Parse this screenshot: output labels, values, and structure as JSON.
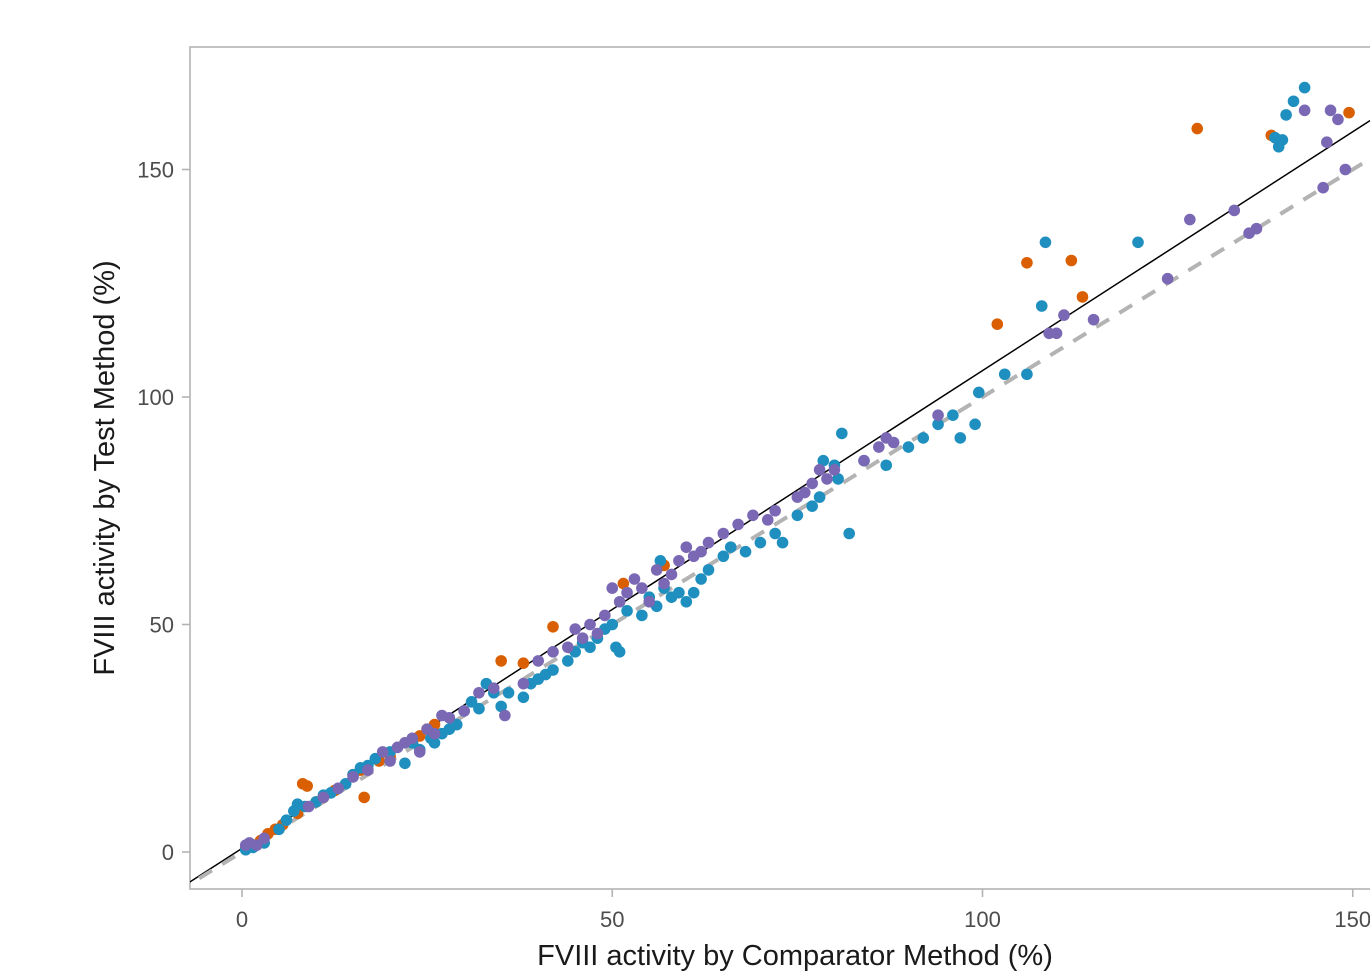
{
  "chart_data": {
    "type": "scatter",
    "title": "",
    "xlabel": "FVIII activity by Comparator Method (%)",
    "ylabel": "FVIII activity by Test Method (%)",
    "xlim": [
      -7,
      152
    ],
    "ylim": [
      -7.5,
      177
    ],
    "x_ticks": [
      0,
      50,
      100,
      150
    ],
    "y_ticks": [
      0,
      50,
      100,
      150
    ],
    "grid": false,
    "legend": "none",
    "reference_lines": [
      {
        "kind": "regression",
        "style": "solid",
        "color": "#000000",
        "intercept": 0.8,
        "slope": 1.05
      },
      {
        "kind": "identity",
        "style": "dashed",
        "color": "#b3b3b3",
        "intercept": 0,
        "slope": 1.0
      }
    ],
    "series": [
      {
        "color": "#d95f02",
        "points": [
          [
            0.5,
            0.8
          ],
          [
            1.5,
            1.5
          ],
          [
            2.5,
            2.5
          ],
          [
            3.5,
            4
          ],
          [
            4.5,
            5
          ],
          [
            5.5,
            6
          ],
          [
            7.5,
            8.5
          ],
          [
            8.2,
            15
          ],
          [
            8.8,
            14.5
          ],
          [
            10,
            11
          ],
          [
            11,
            12
          ],
          [
            12.5,
            13.5
          ],
          [
            15,
            17
          ],
          [
            16,
            18
          ],
          [
            16.5,
            12
          ],
          [
            18.5,
            20
          ],
          [
            20,
            21
          ],
          [
            24,
            25.5
          ],
          [
            25,
            27
          ],
          [
            26,
            28
          ],
          [
            35,
            42
          ],
          [
            38,
            41.5
          ],
          [
            42,
            49.5
          ],
          [
            51.5,
            59
          ],
          [
            57,
            63
          ],
          [
            102,
            116
          ],
          [
            106,
            129.5
          ],
          [
            112,
            130
          ],
          [
            113.5,
            122
          ],
          [
            129,
            159
          ],
          [
            139,
            157.5
          ],
          [
            149.5,
            162.5
          ]
        ]
      },
      {
        "color": "#1f8fbf",
        "points": [
          [
            0.5,
            0.5
          ],
          [
            1.5,
            1
          ],
          [
            3,
            2
          ],
          [
            5,
            5
          ],
          [
            6,
            7
          ],
          [
            7,
            9
          ],
          [
            7.5,
            10.5
          ],
          [
            8.5,
            10
          ],
          [
            10,
            11
          ],
          [
            11,
            12.5
          ],
          [
            12,
            13
          ],
          [
            13,
            14
          ],
          [
            14,
            15
          ],
          [
            15,
            17
          ],
          [
            16,
            18.5
          ],
          [
            17,
            19
          ],
          [
            18,
            20.5
          ],
          [
            20,
            22
          ],
          [
            22,
            19.5
          ],
          [
            23,
            24
          ],
          [
            24,
            22.5
          ],
          [
            25.5,
            25
          ],
          [
            26,
            24
          ],
          [
            27,
            26
          ],
          [
            28,
            27
          ],
          [
            29,
            28
          ],
          [
            30,
            31
          ],
          [
            31,
            33
          ],
          [
            32,
            31.5
          ],
          [
            33,
            37
          ],
          [
            34,
            35
          ],
          [
            35,
            32
          ],
          [
            36,
            35
          ],
          [
            38,
            34
          ],
          [
            39,
            37
          ],
          [
            40,
            38
          ],
          [
            41,
            39
          ],
          [
            42,
            40
          ],
          [
            44,
            42
          ],
          [
            45,
            44
          ],
          [
            46,
            46
          ],
          [
            47,
            45
          ],
          [
            48,
            47
          ],
          [
            49,
            49
          ],
          [
            50,
            50
          ],
          [
            50.5,
            45
          ],
          [
            51,
            44
          ],
          [
            52,
            53
          ],
          [
            54,
            52
          ],
          [
            55,
            56
          ],
          [
            56,
            54
          ],
          [
            56.5,
            64
          ],
          [
            57,
            58
          ],
          [
            58,
            56
          ],
          [
            59,
            57
          ],
          [
            60,
            55
          ],
          [
            61,
            57
          ],
          [
            62,
            60
          ],
          [
            63,
            62
          ],
          [
            65,
            65
          ],
          [
            66,
            67
          ],
          [
            68,
            66
          ],
          [
            70,
            68
          ],
          [
            72,
            70
          ],
          [
            73,
            68
          ],
          [
            75,
            74
          ],
          [
            77,
            76
          ],
          [
            78,
            78
          ],
          [
            78.5,
            86
          ],
          [
            80,
            85
          ],
          [
            80.5,
            82
          ],
          [
            81,
            92
          ],
          [
            82,
            70
          ],
          [
            84,
            86
          ],
          [
            87,
            85
          ],
          [
            90,
            89
          ],
          [
            92,
            91
          ],
          [
            94,
            94
          ],
          [
            96,
            96
          ],
          [
            97,
            91
          ],
          [
            99,
            94
          ],
          [
            99.5,
            101
          ],
          [
            103,
            105
          ],
          [
            106,
            105
          ],
          [
            108,
            120
          ],
          [
            108.5,
            134
          ],
          [
            121,
            134
          ],
          [
            139.5,
            157
          ],
          [
            140,
            155
          ],
          [
            140.5,
            156.5
          ],
          [
            141,
            162
          ],
          [
            142,
            165
          ],
          [
            143.5,
            168
          ]
        ]
      },
      {
        "color": "#7b68b4",
        "points": [
          [
            0.5,
            1.5
          ],
          [
            1,
            2
          ],
          [
            2,
            1.5
          ],
          [
            3,
            3
          ],
          [
            9,
            10
          ],
          [
            11,
            12
          ],
          [
            13,
            14
          ],
          [
            15,
            16.5
          ],
          [
            17,
            18
          ],
          [
            19,
            22
          ],
          [
            20,
            20
          ],
          [
            21,
            23
          ],
          [
            22,
            24
          ],
          [
            23,
            25
          ],
          [
            24,
            22
          ],
          [
            25,
            27
          ],
          [
            26,
            26
          ],
          [
            27,
            30
          ],
          [
            28,
            29.5
          ],
          [
            30,
            31
          ],
          [
            32,
            35
          ],
          [
            34,
            36
          ],
          [
            35.5,
            30
          ],
          [
            38,
            37
          ],
          [
            40,
            42
          ],
          [
            42,
            44
          ],
          [
            44,
            45
          ],
          [
            45,
            49
          ],
          [
            46,
            47
          ],
          [
            47,
            50
          ],
          [
            48,
            48
          ],
          [
            49,
            52
          ],
          [
            50,
            58
          ],
          [
            51,
            55
          ],
          [
            52,
            57
          ],
          [
            53,
            60
          ],
          [
            54,
            58
          ],
          [
            55,
            55
          ],
          [
            56,
            62
          ],
          [
            57,
            59
          ],
          [
            58,
            61
          ],
          [
            59,
            64
          ],
          [
            60,
            67
          ],
          [
            61,
            65
          ],
          [
            62,
            66
          ],
          [
            63,
            68
          ],
          [
            65,
            70
          ],
          [
            67,
            72
          ],
          [
            69,
            74
          ],
          [
            71,
            73
          ],
          [
            72,
            75
          ],
          [
            75,
            78
          ],
          [
            76,
            79
          ],
          [
            77,
            81
          ],
          [
            78,
            84
          ],
          [
            79,
            82
          ],
          [
            80,
            84
          ],
          [
            84,
            86
          ],
          [
            86,
            89
          ],
          [
            87,
            91
          ],
          [
            88,
            90
          ],
          [
            94,
            96
          ],
          [
            109,
            114
          ],
          [
            110,
            114
          ],
          [
            111,
            118
          ],
          [
            115,
            117
          ],
          [
            125,
            126
          ],
          [
            128,
            139
          ],
          [
            134,
            141
          ],
          [
            136,
            136
          ],
          [
            137,
            137
          ],
          [
            146,
            146
          ],
          [
            146.5,
            156
          ],
          [
            148,
            161
          ],
          [
            149,
            150
          ],
          [
            147,
            163
          ],
          [
            143.5,
            163
          ]
        ]
      }
    ]
  }
}
